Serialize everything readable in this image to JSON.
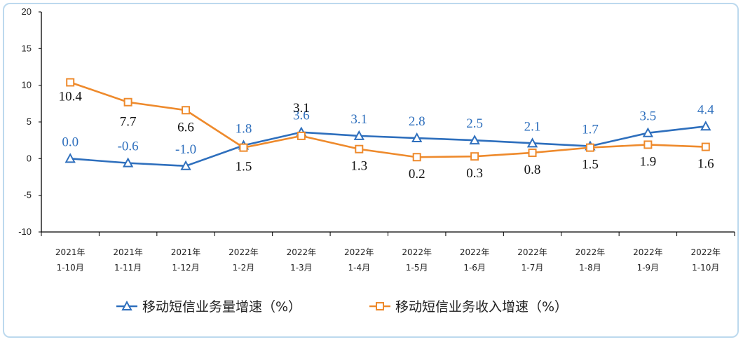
{
  "chart_data": {
    "type": "line",
    "title": "",
    "xlabel": "",
    "ylabel": "",
    "ylim": [
      -10,
      20
    ],
    "yticks": [
      "20",
      "15",
      "10",
      "5",
      "0",
      "-5",
      "-10"
    ],
    "ytick_values": [
      20,
      15,
      10,
      5,
      0,
      -5,
      -10
    ],
    "categories": [
      [
        "2021年",
        "1-10月"
      ],
      [
        "2021年",
        "1-11月"
      ],
      [
        "2021年",
        "1-12月"
      ],
      [
        "2022年",
        "1-2月"
      ],
      [
        "2022年",
        "1-3月"
      ],
      [
        "2022年",
        "1-4月"
      ],
      [
        "2022年",
        "1-5月"
      ],
      [
        "2022年",
        "1-6月"
      ],
      [
        "2022年",
        "1-7月"
      ],
      [
        "2022年",
        "1-8月"
      ],
      [
        "2022年",
        "1-9月"
      ],
      [
        "2022年",
        "1-10月"
      ]
    ],
    "series": [
      {
        "name": "移动短信业务量增速（%）",
        "color": "#2e6fbd",
        "marker": "triangle",
        "values": [
          0.0,
          -0.6,
          -1.0,
          1.8,
          3.6,
          3.1,
          2.8,
          2.5,
          2.1,
          1.7,
          3.5,
          4.4
        ],
        "labels": [
          "0.0",
          "-0.6",
          "-1.0",
          "1.8",
          "3.6",
          "3.1",
          "2.8",
          "2.5",
          "2.1",
          "1.7",
          "3.5",
          "4.4"
        ]
      },
      {
        "name": "移动短信业务收入增速（%）",
        "color": "#ee8a2c",
        "marker": "square",
        "values": [
          10.4,
          7.7,
          6.6,
          1.5,
          3.1,
          1.3,
          0.2,
          0.3,
          0.8,
          1.5,
          1.9,
          1.6
        ],
        "labels": [
          "10.4",
          "7.7",
          "6.6",
          "1.5",
          "3.1",
          "1.3",
          "0.2",
          "0.3",
          "0.8",
          "1.5",
          "1.9",
          "1.6"
        ]
      }
    ],
    "grid": false,
    "legend_position": "bottom"
  }
}
